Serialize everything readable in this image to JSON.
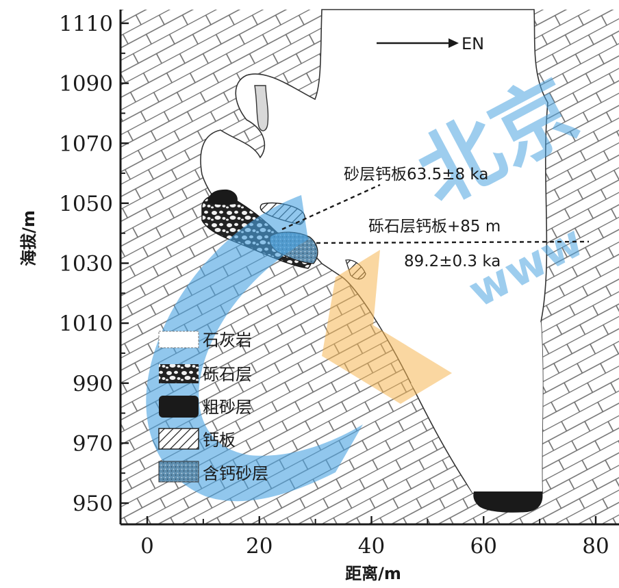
{
  "axes": {
    "y_title": "海拔/m",
    "x_title": "距离/m",
    "y_ticks": [
      "1110",
      "1090",
      "1070",
      "1050",
      "1030",
      "1010",
      "990",
      "970",
      "950"
    ],
    "x_ticks": [
      "0",
      "20",
      "40",
      "60",
      "80"
    ],
    "ylim": [
      950,
      1110
    ],
    "xlim": [
      0,
      80
    ]
  },
  "direction": {
    "label": "EN"
  },
  "annotations": {
    "sand_calcrete": "砂层钙板63.5±8 ka",
    "gravel_calcrete_line1": "砾石层钙板+85 m",
    "gravel_calcrete_line2": "89.2±0.3 ka"
  },
  "legend": [
    {
      "key": "limestone",
      "label": "石灰岩"
    },
    {
      "key": "gravel",
      "label": "砾石层"
    },
    {
      "key": "coarse_sand",
      "label": "粗砂层"
    },
    {
      "key": "calcrete",
      "label": "钙板"
    },
    {
      "key": "calcareous_sand",
      "label": "含钙砂层"
    }
  ],
  "colors": {
    "ink": "#1a1a1a",
    "watermark_blue": "#4aa3e0",
    "watermark_orange": "#f5b450",
    "calcareous_sand": "#5f8fb0"
  },
  "watermark": {
    "text_large": "北京",
    "text_small": "www"
  }
}
